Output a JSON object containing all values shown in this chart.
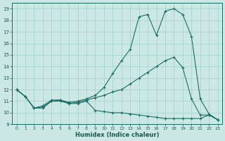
{
  "xlabel": "Humidex (Indice chaleur)",
  "background_color": "#cce8e4",
  "grid_color": "#aad4cf",
  "line_color": "#1a6e65",
  "xlim": [
    -0.5,
    23.5
  ],
  "ylim": [
    9.0,
    19.5
  ],
  "xticks": [
    0,
    1,
    2,
    3,
    4,
    5,
    6,
    7,
    8,
    9,
    10,
    11,
    12,
    13,
    14,
    15,
    16,
    17,
    18,
    19,
    20,
    21,
    22,
    23
  ],
  "yticks": [
    9,
    10,
    11,
    12,
    13,
    14,
    15,
    16,
    17,
    18,
    19
  ],
  "series_top_x": [
    0,
    1,
    2,
    3,
    4,
    5,
    6,
    7,
    8,
    9,
    10,
    11,
    12,
    13,
    14,
    15,
    16,
    17,
    18,
    19,
    20,
    21,
    22,
    23
  ],
  "series_top_y": [
    12.0,
    11.4,
    10.4,
    10.6,
    11.1,
    11.1,
    10.9,
    11.0,
    11.2,
    11.5,
    12.2,
    13.4,
    14.5,
    15.5,
    18.3,
    18.5,
    16.7,
    18.8,
    19.0,
    18.5,
    16.6,
    11.2,
    9.9,
    9.4
  ],
  "series_mid_x": [
    0,
    1,
    2,
    3,
    4,
    5,
    6,
    7,
    8,
    9,
    10,
    11,
    12,
    13,
    14,
    15,
    16,
    17,
    18,
    19,
    20,
    21,
    22,
    23
  ],
  "series_mid_y": [
    12.0,
    11.4,
    10.4,
    10.5,
    11.0,
    11.1,
    10.8,
    10.9,
    11.1,
    11.3,
    11.5,
    11.8,
    12.0,
    12.5,
    13.0,
    13.5,
    14.0,
    14.5,
    14.8,
    13.9,
    11.2,
    9.8,
    9.8,
    9.4
  ],
  "series_bot_x": [
    0,
    1,
    2,
    3,
    4,
    5,
    6,
    7,
    8,
    9,
    10,
    11,
    12,
    13,
    14,
    15,
    16,
    17,
    18,
    19,
    20,
    21,
    22,
    23
  ],
  "series_bot_y": [
    12.0,
    11.4,
    10.4,
    10.4,
    11.0,
    11.0,
    10.8,
    10.8,
    11.0,
    10.2,
    10.1,
    10.0,
    10.0,
    9.9,
    9.8,
    9.7,
    9.6,
    9.5,
    9.5,
    9.5,
    9.5,
    9.5,
    9.8,
    9.4
  ]
}
